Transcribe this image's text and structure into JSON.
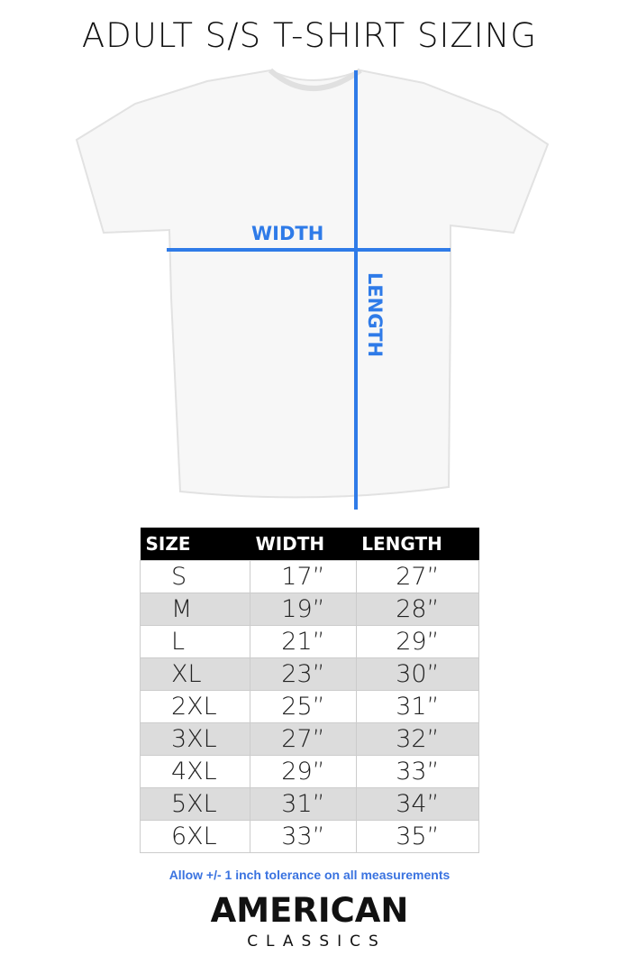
{
  "title": "ADULT S/S T-SHIRT SIZING",
  "diagram": {
    "width_label": "WIDTH",
    "length_label": "LENGTH",
    "line_color": "#2f7be8"
  },
  "table": {
    "headers": [
      "SIZE",
      "WIDTH",
      "LENGTH"
    ],
    "rows": [
      [
        "S",
        "17”",
        "27”"
      ],
      [
        "M",
        "19”",
        "28”"
      ],
      [
        "L",
        "21”",
        "29”"
      ],
      [
        "XL",
        "23”",
        "30”"
      ],
      [
        "2XL",
        "25”",
        "31”"
      ],
      [
        "3XL",
        "27”",
        "32”"
      ],
      [
        "4XL",
        "29”",
        "33”"
      ],
      [
        "5XL",
        "31”",
        "34”"
      ],
      [
        "6XL",
        "33”",
        "35”"
      ]
    ]
  },
  "note": "Allow +/- 1 inch tolerance on all measurements",
  "logo": {
    "line1": "AMERICAN",
    "line2": "CLASSICS"
  }
}
